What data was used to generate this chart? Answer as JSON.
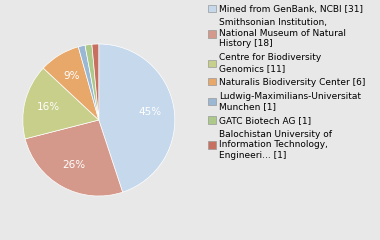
{
  "labels": [
    "Mined from GenBank, NCBI [31]",
    "Smithsonian Institution,\nNational Museum of Natural\nHistory [18]",
    "Centre for Biodiversity\nGenomics [11]",
    "Naturalis Biodiversity Center [6]",
    "Ludwig-Maximilians-Universitat\nMunchen [1]",
    "GATC Biotech AG [1]",
    "Balochistan University of\nInformation Technology,\nEngineeri... [1]"
  ],
  "values": [
    31,
    18,
    11,
    6,
    1,
    1,
    1
  ],
  "colors": [
    "#c5d8ec",
    "#d4998a",
    "#c8cf8a",
    "#e8a86a",
    "#9ab8d4",
    "#adc98a",
    "#c87060"
  ],
  "startangle": 90,
  "legend_fontsize": 6.5,
  "pct_fontsize": 7.5,
  "background_color": "#e8e8e8"
}
